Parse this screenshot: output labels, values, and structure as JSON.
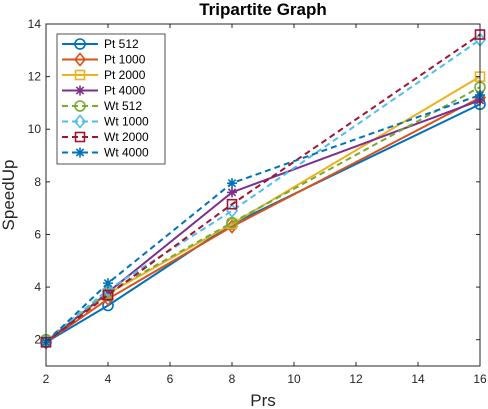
{
  "chart_data": {
    "type": "line",
    "title": "Tripartite Graph",
    "xlabel": "Prs",
    "ylabel": "SpeedUp",
    "xlim": [
      2,
      16
    ],
    "ylim": [
      1,
      14
    ],
    "xticks": [
      2,
      4,
      6,
      8,
      10,
      12,
      14,
      16
    ],
    "yticks": [
      2,
      4,
      6,
      8,
      10,
      12,
      14
    ],
    "grid": false,
    "legend_position": "top-left",
    "x": [
      2,
      4,
      8,
      16
    ],
    "series": [
      {
        "name": "Pt 512",
        "values": [
          1.9,
          3.3,
          6.4,
          10.95
        ],
        "color": "#0072BD",
        "style": "solid",
        "marker": "circle"
      },
      {
        "name": "Pt 1000",
        "values": [
          1.9,
          3.55,
          6.3,
          11.2
        ],
        "color": "#D95319",
        "style": "solid",
        "marker": "diamond"
      },
      {
        "name": "Pt 2000",
        "values": [
          1.95,
          3.75,
          6.4,
          12.0
        ],
        "color": "#EDB120",
        "style": "solid",
        "marker": "square"
      },
      {
        "name": "Pt 4000",
        "values": [
          1.9,
          3.8,
          7.6,
          11.1
        ],
        "color": "#7E2F8E",
        "style": "solid",
        "marker": "asterisk"
      },
      {
        "name": "Wt 512",
        "values": [
          2.0,
          3.8,
          6.45,
          11.6
        ],
        "color": "#77AC30",
        "style": "dashed",
        "marker": "circle"
      },
      {
        "name": "Wt 1000",
        "values": [
          1.95,
          3.9,
          6.9,
          13.4
        ],
        "color": "#4DBEEE",
        "style": "dashed",
        "marker": "diamond"
      },
      {
        "name": "Wt 2000",
        "values": [
          1.9,
          3.7,
          7.15,
          13.6
        ],
        "color": "#A2142F",
        "style": "dashed",
        "marker": "square"
      },
      {
        "name": "Wt 4000",
        "values": [
          1.9,
          4.15,
          7.95,
          11.3
        ],
        "color": "#0072BD",
        "style": "dashed",
        "marker": "asterisk"
      }
    ]
  }
}
